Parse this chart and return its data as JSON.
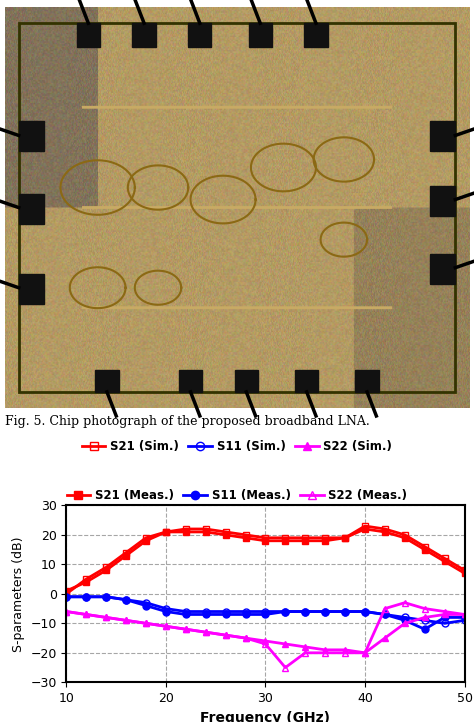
{
  "fig_caption": "Fig. 5. Chip photograph of the proposed broadband LNA.",
  "xlabel": "Frequency (GHz)",
  "ylabel": "S-parameters (dB)",
  "xlim": [
    10,
    50
  ],
  "ylim": [
    -30,
    30
  ],
  "xticks": [
    10,
    20,
    30,
    40,
    50
  ],
  "yticks": [
    -30,
    -20,
    -10,
    0,
    10,
    20,
    30
  ],
  "freq": [
    10,
    12,
    14,
    16,
    18,
    20,
    22,
    24,
    26,
    28,
    30,
    32,
    34,
    36,
    38,
    40,
    42,
    44,
    46,
    48,
    50
  ],
  "S21_sim": [
    0,
    5,
    9,
    14,
    19,
    21,
    22,
    22,
    21,
    20,
    19,
    19,
    19,
    19,
    19,
    23,
    22,
    20,
    16,
    12,
    8
  ],
  "S21_meas": [
    1,
    4,
    8,
    13,
    18,
    21,
    21,
    21,
    20,
    19,
    18,
    18,
    18,
    18,
    19,
    22,
    21,
    19,
    15,
    11,
    7
  ],
  "S11_sim": [
    -1,
    -1,
    -1,
    -2,
    -3,
    -5,
    -6,
    -6,
    -6,
    -6,
    -6,
    -6,
    -6,
    -6,
    -6,
    -6,
    -7,
    -8,
    -9,
    -10,
    -9
  ],
  "S11_meas": [
    -1,
    -1,
    -1,
    -2,
    -4,
    -6,
    -7,
    -7,
    -7,
    -7,
    -7,
    -6,
    -6,
    -6,
    -6,
    -6,
    -7,
    -9,
    -12,
    -8,
    -8
  ],
  "S22_sim": [
    -6,
    -7,
    -8,
    -9,
    -10,
    -11,
    -12,
    -13,
    -14,
    -15,
    -16,
    -17,
    -18,
    -19,
    -19,
    -20,
    -15,
    -10,
    -8,
    -7,
    -7
  ],
  "S22_meas": [
    -6,
    -7,
    -8,
    -9,
    -10,
    -11,
    -12,
    -13,
    -14,
    -15,
    -17,
    -25,
    -20,
    -20,
    -20,
    -20,
    -5,
    -3,
    -5,
    -6,
    -7
  ],
  "colors": {
    "red": "#FF0000",
    "blue": "#0000FF",
    "magenta": "#FF00FF"
  },
  "chip_bg": [
    180,
    155,
    100
  ],
  "chip_fg": [
    210,
    185,
    130
  ]
}
